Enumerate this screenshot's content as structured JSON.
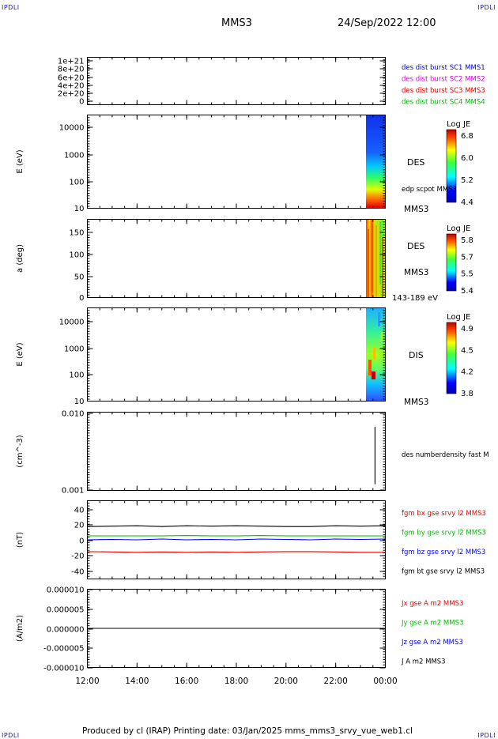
{
  "corner_label": "IPDLI",
  "header": {
    "spacecraft": "MMS3",
    "datetime": "24/Sep/2022 12:00"
  },
  "footer": {
    "text": "Produced by cl (IRAP)   Printing date: 03/Jan/2025   mms_mms3_srvy_vue_web1.cl"
  },
  "time_axis": {
    "ticks": [
      "12:00",
      "14:00",
      "16:00",
      "18:00",
      "20:00",
      "22:00",
      "00:00"
    ]
  },
  "panels": {
    "dist": {
      "yticks": [
        "1e+21",
        "8e+20",
        "6e+20",
        "4e+20",
        "2e+20",
        "0"
      ],
      "legend": [
        {
          "text": "des dist burst SC1 MMS1",
          "color": "#0000ee"
        },
        {
          "text": "des dist burst SC2 MMS2",
          "color": "#dd00dd"
        },
        {
          "text": "des dist burst SC3 MMS3",
          "color": "#ee0000"
        },
        {
          "text": "des dist burst SC4 MMS4",
          "color": "#00bb00"
        }
      ]
    },
    "des_energy": {
      "ylabel": "E (eV)",
      "yticks": [
        "10000",
        "1000",
        "100",
        "10"
      ],
      "label": "DES",
      "sublabel": "edp scpot MMS3",
      "sc": "MMS3",
      "colorbar": {
        "title": "Log JE",
        "ticks": [
          "6.8",
          "6.0",
          "5.2",
          "4.4"
        ]
      }
    },
    "des_pitch": {
      "ylabel": "a (deg)",
      "yticks": [
        "150",
        "100",
        "50",
        "0"
      ],
      "label": "DES",
      "sc": "MMS3",
      "range": "143-189 eV",
      "colorbar": {
        "title": "Log JE",
        "ticks": [
          "5.8",
          "5.7",
          "5.5",
          "5.4"
        ]
      }
    },
    "dis_energy": {
      "ylabel": "E (eV)",
      "yticks": [
        "10000",
        "1000",
        "100",
        "10"
      ],
      "label": "DIS",
      "sc": "MMS3",
      "colorbar": {
        "title": "Log JE",
        "ticks": [
          "4.9",
          "4.5",
          "4.2",
          "3.8"
        ]
      }
    },
    "density": {
      "ylabel": "(cm^-3)",
      "yticks": [
        "0.010",
        "0.001"
      ],
      "legend": "des numberdensity fast M"
    },
    "fgm": {
      "ylabel": "(nT)",
      "yticks": [
        "40",
        "20",
        "0",
        "-20",
        "-40"
      ],
      "legend": [
        {
          "text": "fgm bx gse srvy l2 MMS3",
          "color": "#ee0000"
        },
        {
          "text": "fgm by gse srvy l2 MMS3",
          "color": "#00bb00"
        },
        {
          "text": "fgm bz gse srvy l2 MMS3",
          "color": "#0000ee"
        },
        {
          "text": "fgm bt gse srvy l2 MMS3",
          "color": "#000000"
        }
      ]
    },
    "current": {
      "ylabel": "(A/m2)",
      "yticks": [
        "0.000010",
        "0.000005",
        "0.000000",
        "-0.000005",
        "-0.000010"
      ],
      "legend": [
        {
          "text": "Jx gse A m2 MMS3",
          "color": "#ee0000"
        },
        {
          "text": "Jy gse A m2 MMS3",
          "color": "#00bb00"
        },
        {
          "text": "Jz gse A m2 MMS3",
          "color": "#0000ee"
        },
        {
          "text": "J A m2 MMS3",
          "color": "#000000"
        }
      ]
    }
  },
  "chart_data": [
    {
      "type": "line",
      "panel": "dist",
      "xlim": [
        "12:00",
        "00:00"
      ],
      "ylim": [
        0,
        1e+21
      ],
      "series": [
        {
          "name": "des dist burst SC3 MMS3",
          "values": [
            0,
            0
          ]
        }
      ]
    },
    {
      "type": "heatmap",
      "panel": "des_energy",
      "ylabel": "E (eV)",
      "yscale": "log",
      "ylim": [
        10,
        20000
      ],
      "data_window": [
        "23:25",
        "23:50"
      ],
      "colorbar": "Log JE",
      "clim": [
        4.4,
        6.8
      ]
    },
    {
      "type": "heatmap",
      "panel": "des_pitch",
      "ylabel": "a (deg)",
      "ylim": [
        0,
        180
      ],
      "data_window": [
        "23:25",
        "23:50"
      ],
      "colorbar": "Log JE",
      "clim": [
        5.4,
        5.8
      ]
    },
    {
      "type": "heatmap",
      "panel": "dis_energy",
      "ylabel": "E (eV)",
      "yscale": "log",
      "ylim": [
        10,
        20000
      ],
      "data_window": [
        "23:25",
        "23:50"
      ],
      "colorbar": "Log JE",
      "clim": [
        3.8,
        4.9
      ]
    },
    {
      "type": "line",
      "panel": "density",
      "ylabel": "(cm^-3)",
      "yscale": "log",
      "ylim": [
        0.001,
        0.01
      ],
      "series": [
        {
          "name": "des numberdensity fast M",
          "x": [
            "23:35",
            "23:35"
          ],
          "values": [
            0.0012,
            0.0065
          ]
        }
      ]
    },
    {
      "type": "line",
      "panel": "fgm",
      "ylabel": "(nT)",
      "ylim": [
        -50,
        50
      ],
      "x": [
        "12:00",
        "13:00",
        "14:00",
        "15:00",
        "16:00",
        "17:00",
        "18:00",
        "19:00",
        "20:00",
        "21:00",
        "22:00",
        "23:00",
        "00:00"
      ],
      "series": [
        {
          "name": "fgm bx gse srvy l2 MMS3",
          "color": "#ee0000",
          "values": [
            -15,
            -15.5,
            -16,
            -15.5,
            -16,
            -15.5,
            -16,
            -15.5,
            -15,
            -15,
            -15.5,
            -16,
            -16
          ]
        },
        {
          "name": "fgm by gse srvy l2 MMS3",
          "color": "#00bb00",
          "values": [
            5,
            5,
            5,
            5,
            5.5,
            5,
            5,
            5.5,
            5,
            5,
            5,
            5,
            5
          ]
        },
        {
          "name": "fgm bz gse srvy l2 MMS3",
          "color": "#0000ee",
          "values": [
            0,
            0.5,
            0,
            1,
            0,
            0.5,
            0,
            1,
            0.5,
            0,
            1,
            0.5,
            1
          ]
        },
        {
          "name": "fgm bt gse srvy l2 MMS3",
          "color": "#000000",
          "values": [
            17,
            17.5,
            18,
            17,
            18,
            17.5,
            18,
            17.5,
            17,
            17,
            18,
            17.5,
            18
          ]
        }
      ]
    },
    {
      "type": "line",
      "panel": "current",
      "ylabel": "(A/m2)",
      "ylim": [
        -1e-05,
        1e-05
      ],
      "x": [
        "12:00",
        "00:00"
      ],
      "series": [
        {
          "name": "J A m2 MMS3",
          "color": "#000000",
          "values": [
            0,
            0
          ]
        }
      ]
    }
  ]
}
